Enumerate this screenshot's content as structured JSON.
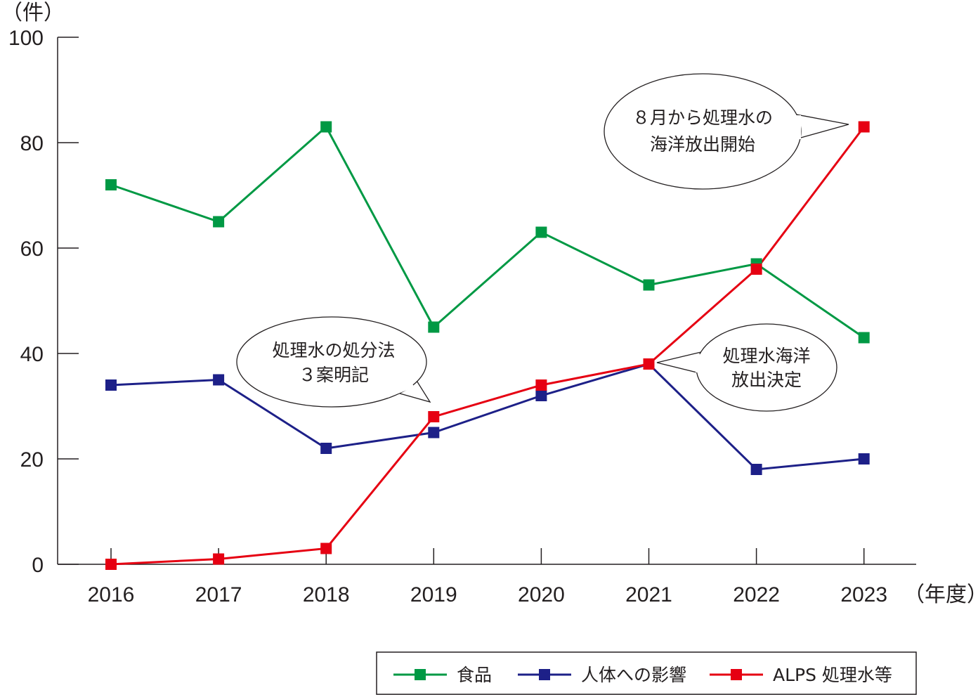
{
  "chart_data": {
    "type": "line",
    "y_unit": "（件）",
    "x_unit": "（年度）",
    "ylim": [
      0,
      100
    ],
    "y_ticks": [
      0,
      20,
      40,
      60,
      80,
      100
    ],
    "categories": [
      "2016",
      "2017",
      "2018",
      "2019",
      "2020",
      "2021",
      "2022",
      "2023"
    ],
    "series": [
      {
        "name": "食品",
        "color": "#009944",
        "values": [
          72,
          65,
          83,
          45,
          63,
          53,
          57,
          43
        ]
      },
      {
        "name": "人体への影響",
        "color": "#1d2088",
        "values": [
          34,
          35,
          22,
          25,
          32,
          38,
          18,
          20
        ]
      },
      {
        "name": "ALPS 処理水等",
        "color": "#e60012",
        "values": [
          0,
          1,
          3,
          28,
          34,
          38,
          56,
          83
        ]
      }
    ],
    "annotations": [
      {
        "lines": [
          "処理水の処分法",
          "３案明記"
        ],
        "target": "2019"
      },
      {
        "lines": [
          "処理水海洋",
          "放出決定"
        ],
        "target": "2021"
      },
      {
        "lines": [
          "８月から処理水の",
          "海洋放出開始"
        ],
        "target": "2023"
      }
    ],
    "legend_position": "bottom-right"
  }
}
